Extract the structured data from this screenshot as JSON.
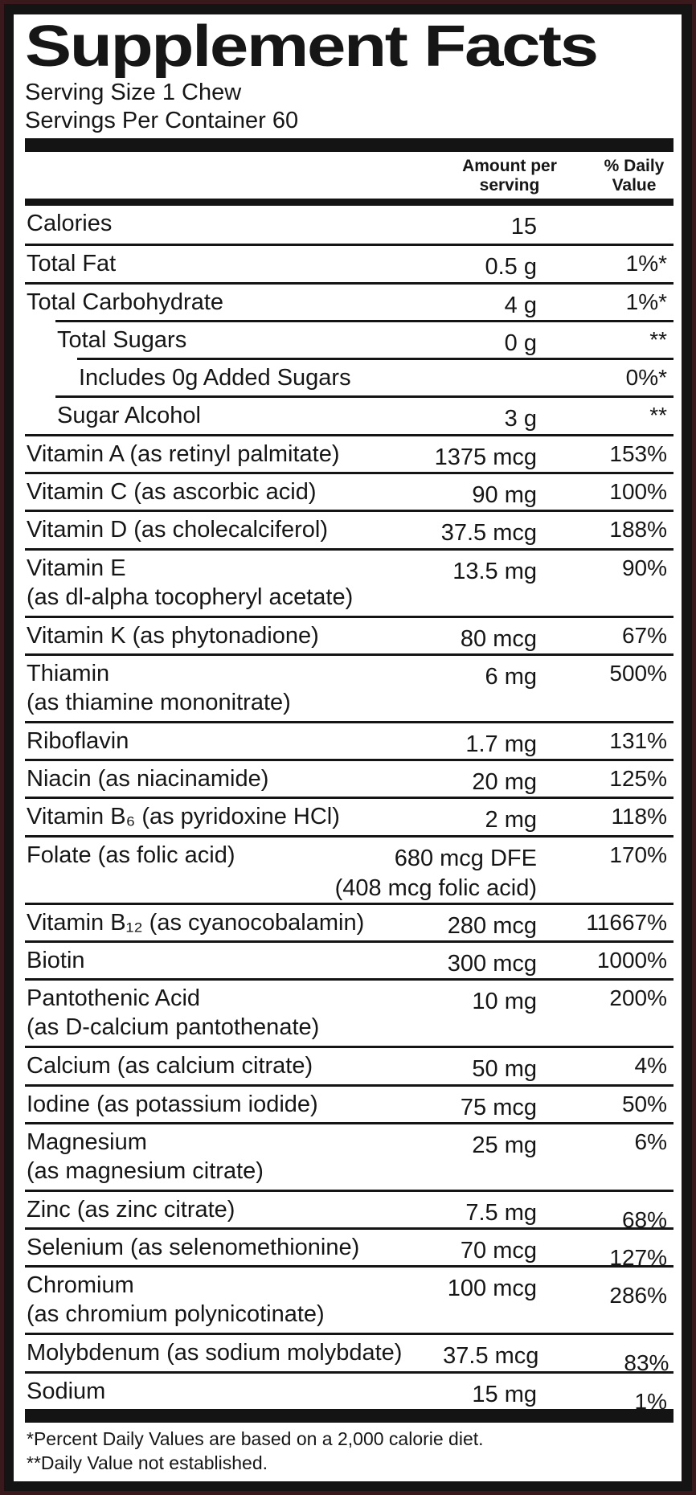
{
  "title": "Supplement Facts",
  "serving": {
    "size_line": "Serving Size 1 Chew",
    "per_container_line": "Servings Per Container 60"
  },
  "columns": {
    "amount_line1": "Amount per",
    "amount_line2": "serving",
    "dv_line1": "% Daily",
    "dv_line2": "Value"
  },
  "table": {
    "rows": [
      {
        "name": "Calories",
        "amount": "15",
        "dv": ""
      },
      {
        "name": "Total Fat",
        "amount": "0.5 g",
        "dv": "1%*"
      },
      {
        "name": "Total Carbohydrate",
        "amount": "4 g",
        "dv": "1%*"
      },
      {
        "name": "Total Sugars",
        "amount": "0 g",
        "dv": "**",
        "indent": 1
      },
      {
        "name": "Includes 0g Added Sugars",
        "amount": "",
        "dv": "0%*",
        "indent": 2
      },
      {
        "name": "Sugar Alcohol",
        "amount": "3 g",
        "dv": "**",
        "indent": 1
      },
      {
        "name": "Vitamin A (as retinyl palmitate)",
        "amount": "1375 mcg",
        "dv": "153%"
      },
      {
        "name": "Vitamin C (as ascorbic acid)",
        "amount": "90 mg",
        "dv": "100%"
      },
      {
        "name": "Vitamin D (as cholecalciferol)",
        "amount": "37.5 mcg",
        "dv": "188%"
      },
      {
        "name": "Vitamin E",
        "name2": "(as dl-alpha tocopheryl acetate)",
        "amount": "13.5 mg",
        "dv": "90%"
      },
      {
        "name": "Vitamin K (as phytonadione)",
        "amount": "80 mcg",
        "dv": "67%"
      },
      {
        "name": "Thiamin",
        "name2": "(as thiamine mononitrate)",
        "amount": "6 mg",
        "dv": "500%"
      },
      {
        "name": "Riboflavin",
        "amount": "1.7 mg",
        "dv": "131%"
      },
      {
        "name": "Niacin (as niacinamide)",
        "amount": "20 mg",
        "dv": "125%"
      },
      {
        "name": "Vitamin B₆ (as pyridoxine HCl)",
        "amount": "2 mg",
        "dv": "118%"
      },
      {
        "name": "Folate (as folic acid)",
        "amount": "680 mcg DFE",
        "amount2": "(408 mcg folic acid)",
        "dv": "170%"
      },
      {
        "name": "Vitamin B₁₂ (as cyanocobalamin)",
        "amount": "280 mcg",
        "dv": "11667%"
      },
      {
        "name": "Biotin",
        "amount": "300 mcg",
        "dv": "1000%"
      },
      {
        "name": "Pantothenic Acid",
        "name2": "(as D-calcium pantothenate)",
        "amount": "10 mg",
        "dv": "200%"
      },
      {
        "name": "Calcium (as calcium citrate)",
        "amount": "50 mg",
        "dv": "4%"
      },
      {
        "name": "Iodine (as potassium iodide)",
        "amount": "75 mcg",
        "dv": "50%"
      },
      {
        "name": "Magnesium",
        "name2": "(as magnesium citrate)",
        "amount": "25 mg",
        "dv": "6%"
      },
      {
        "name": "Zinc (as zinc citrate)",
        "amount": "7.5 mg",
        "dv": "68%",
        "dv_low": true
      },
      {
        "name": "Selenium (as selenomethionine)",
        "amount": "70 mcg",
        "dv": "127%",
        "dv_low": true
      },
      {
        "name": "Chromium",
        "name2": "(as chromium polynicotinate)",
        "amount": "100 mcg",
        "dv": "286%",
        "dv_low": true
      },
      {
        "name": "Molybdenum (as sodium molybdate)",
        "amount": "37.5 mcg",
        "dv": "83%",
        "dv_low": true
      },
      {
        "name": "Sodium",
        "amount": "15 mg",
        "dv": "1%",
        "dv_low": true
      }
    ]
  },
  "footnotes": [
    "*Percent Daily Values are based on a 2,000 calorie diet.",
    "**Daily Value not established."
  ],
  "colors": {
    "frame": "#141414",
    "outer_border": "#3a191c",
    "background": "#ffffff",
    "text": "#161616"
  }
}
